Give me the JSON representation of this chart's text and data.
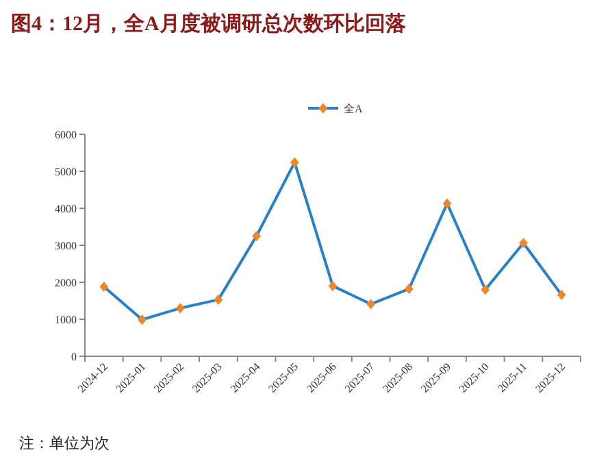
{
  "chart_data": {
    "type": "line",
    "title": "图4：12月，全A月度被调研总次数环比回落",
    "categories": [
      "2024-12",
      "2025-01",
      "2025-02",
      "2025-03",
      "2025-04",
      "2025-05",
      "2025-06",
      "2025-07",
      "2025-08",
      "2025-09",
      "2025-10",
      "2025-11",
      "2025-12"
    ],
    "series": [
      {
        "name": "全A",
        "color": "#2a7fc9",
        "values": [
          1880,
          990,
          1300,
          1530,
          3250,
          5240,
          1900,
          1410,
          1820,
          4130,
          1800,
          3060,
          1660
        ]
      }
    ],
    "ylim": [
      0,
      6000
    ],
    "yticks": [
      0,
      1000,
      2000,
      3000,
      4000,
      5000,
      6000
    ],
    "grid": false,
    "legend": "top",
    "marker": "diamond",
    "line_style": "solid",
    "annotations": [
      "注：单位为次"
    ]
  }
}
